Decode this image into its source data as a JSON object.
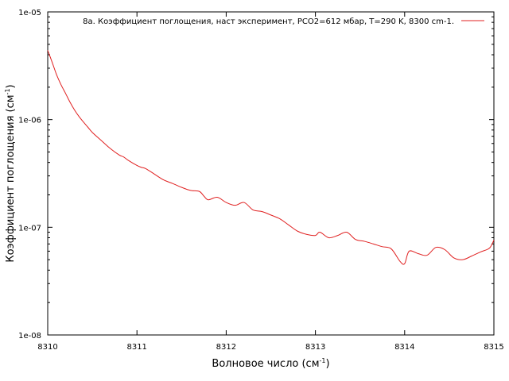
{
  "chart_data": {
    "type": "line",
    "title": "",
    "xlabel": "Волновое число (см",
    "xlabel_sup": "-1",
    "xlabel_tail": ")",
    "ylabel": "Коэффициент поглощения (см",
    "ylabel_sup": "-1",
    "ylabel_tail": ")",
    "xlim": [
      8310,
      8315
    ],
    "ylim": [
      1e-08,
      1e-05
    ],
    "yscale": "log",
    "grid": false,
    "legend_position": "top-right",
    "x_ticks": [
      {
        "value": 8310,
        "label": "8310"
      },
      {
        "value": 8311,
        "label": "8311"
      },
      {
        "value": 8312,
        "label": "8312"
      },
      {
        "value": 8313,
        "label": "8313"
      },
      {
        "value": 8314,
        "label": "8314"
      },
      {
        "value": 8315,
        "label": "8315"
      }
    ],
    "y_ticks": [
      {
        "value": 1e-08,
        "label": "1e-08"
      },
      {
        "value": 1e-07,
        "label": "1e-07"
      },
      {
        "value": 1e-06,
        "label": "1e-06"
      },
      {
        "value": 1e-05,
        "label": "1e-05"
      }
    ],
    "series": [
      {
        "name": "8а. Коэффициент поглощения, наст эксперимент, PCO2=612 мбар, T=290 K, 8300 cm-1.",
        "color": "#e02020",
        "x": [
          8310.0,
          8310.05,
          8310.1,
          8310.15,
          8310.2,
          8310.25,
          8310.3,
          8310.35,
          8310.4,
          8310.45,
          8310.5,
          8310.6,
          8310.7,
          8310.8,
          8310.85,
          8310.9,
          8311.0,
          8311.05,
          8311.1,
          8311.2,
          8311.3,
          8311.4,
          8311.5,
          8311.6,
          8311.7,
          8311.75,
          8311.8,
          8311.9,
          8312.0,
          8312.1,
          8312.2,
          8312.3,
          8312.4,
          8312.5,
          8312.6,
          8312.7,
          8312.8,
          8312.9,
          8313.0,
          8313.05,
          8313.15,
          8313.25,
          8313.35,
          8313.45,
          8313.55,
          8313.65,
          8313.75,
          8313.85,
          8313.95,
          8314.0,
          8314.05,
          8314.15,
          8314.25,
          8314.35,
          8314.45,
          8314.55,
          8314.65,
          8314.75,
          8314.85,
          8314.95,
          8315.0
        ],
        "y": [
          4.4e-06,
          3.4e-06,
          2.6e-06,
          2.1e-06,
          1.75e-06,
          1.45e-06,
          1.23e-06,
          1.07e-06,
          9.5e-07,
          8.5e-07,
          7.6e-07,
          6.4e-07,
          5.4e-07,
          4.7e-07,
          4.5e-07,
          4.2e-07,
          3.75e-07,
          3.6e-07,
          3.5e-07,
          3.1e-07,
          2.75e-07,
          2.55e-07,
          2.35e-07,
          2.2e-07,
          2.15e-07,
          1.95e-07,
          1.8e-07,
          1.9e-07,
          1.7e-07,
          1.6e-07,
          1.7e-07,
          1.45e-07,
          1.4e-07,
          1.3e-07,
          1.2e-07,
          1.05e-07,
          9.2e-08,
          8.6e-08,
          8.4e-08,
          9e-08,
          8e-08,
          8.4e-08,
          9e-08,
          7.7e-08,
          7.4e-08,
          7e-08,
          6.6e-08,
          6.3e-08,
          4.8e-08,
          4.6e-08,
          6e-08,
          5.7e-08,
          5.5e-08,
          6.5e-08,
          6.2e-08,
          5.2e-08,
          5e-08,
          5.4e-08,
          5.9e-08,
          6.4e-08,
          7.6e-08
        ]
      }
    ]
  }
}
